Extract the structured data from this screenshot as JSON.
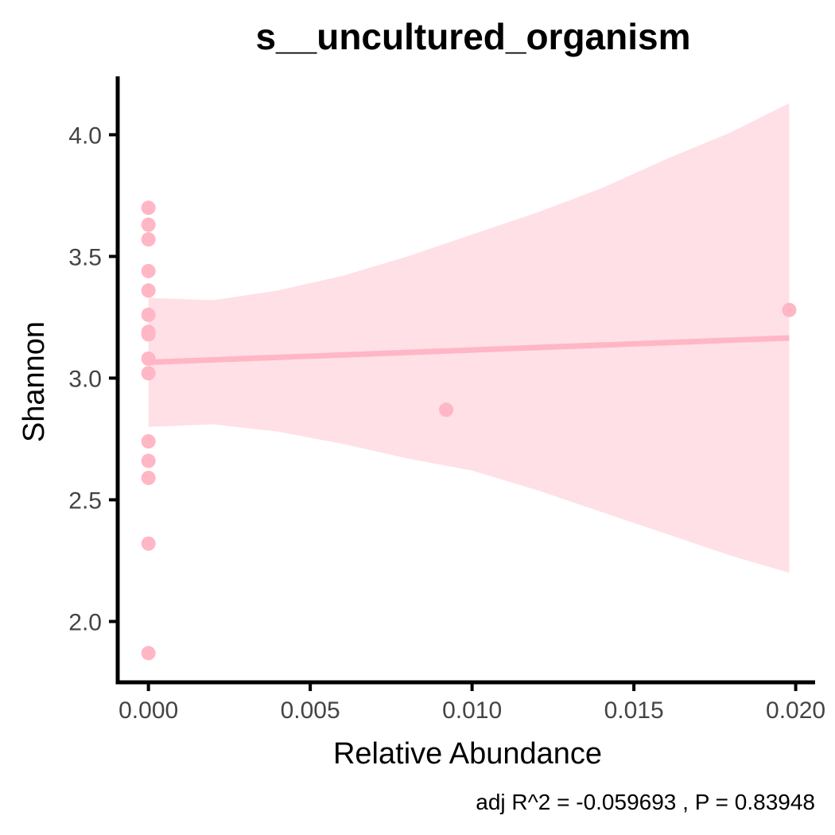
{
  "chart_data": {
    "type": "scatter",
    "title": "s__uncultured_organism",
    "xlabel": "Relative Abundance",
    "ylabel": "Shannon",
    "caption": "adj R^2 =  -0.059693 , P = 0.83948",
    "xlim": [
      -0.00095,
      0.0206
    ],
    "ylim": [
      1.75,
      4.24
    ],
    "x_ticks": [
      0.0,
      0.005,
      0.01,
      0.015,
      0.02
    ],
    "x_tick_labels": [
      "0.000",
      "0.005",
      "0.010",
      "0.015",
      "0.020"
    ],
    "y_ticks": [
      2.0,
      2.5,
      3.0,
      3.5,
      4.0
    ],
    "y_tick_labels": [
      "2.0",
      "2.5",
      "3.0",
      "3.5",
      "4.0"
    ],
    "points": [
      {
        "x": 0.0,
        "y": 3.7
      },
      {
        "x": 0.0,
        "y": 3.63
      },
      {
        "x": 0.0,
        "y": 3.57
      },
      {
        "x": 0.0,
        "y": 3.44
      },
      {
        "x": 0.0,
        "y": 3.36
      },
      {
        "x": 0.0,
        "y": 3.26
      },
      {
        "x": 0.0,
        "y": 3.19
      },
      {
        "x": 0.0,
        "y": 3.18
      },
      {
        "x": 0.0,
        "y": 3.08
      },
      {
        "x": 0.0,
        "y": 3.02
      },
      {
        "x": 0.0,
        "y": 2.74
      },
      {
        "x": 0.0,
        "y": 2.66
      },
      {
        "x": 0.0,
        "y": 2.59
      },
      {
        "x": 0.0,
        "y": 2.32
      },
      {
        "x": 0.0,
        "y": 1.87
      },
      {
        "x": 0.0092,
        "y": 2.87
      },
      {
        "x": 0.0198,
        "y": 3.28
      }
    ],
    "fit_line": {
      "x": [
        0.0,
        0.0198
      ],
      "y": [
        3.065,
        3.165
      ]
    },
    "confidence_band": {
      "x": [
        0.0,
        0.002,
        0.004,
        0.006,
        0.008,
        0.01,
        0.012,
        0.014,
        0.016,
        0.018,
        0.0198
      ],
      "upper": [
        3.33,
        3.32,
        3.36,
        3.42,
        3.5,
        3.59,
        3.68,
        3.78,
        3.9,
        4.01,
        4.13
      ],
      "lower": [
        2.8,
        2.81,
        2.78,
        2.73,
        2.67,
        2.62,
        2.54,
        2.45,
        2.36,
        2.27,
        2.2
      ]
    },
    "colors": {
      "points": "#ffb6c5",
      "line": "#ffb6c5",
      "band": "#ffe0e6",
      "axis": "#000000"
    },
    "grid": false,
    "legend": "none"
  }
}
